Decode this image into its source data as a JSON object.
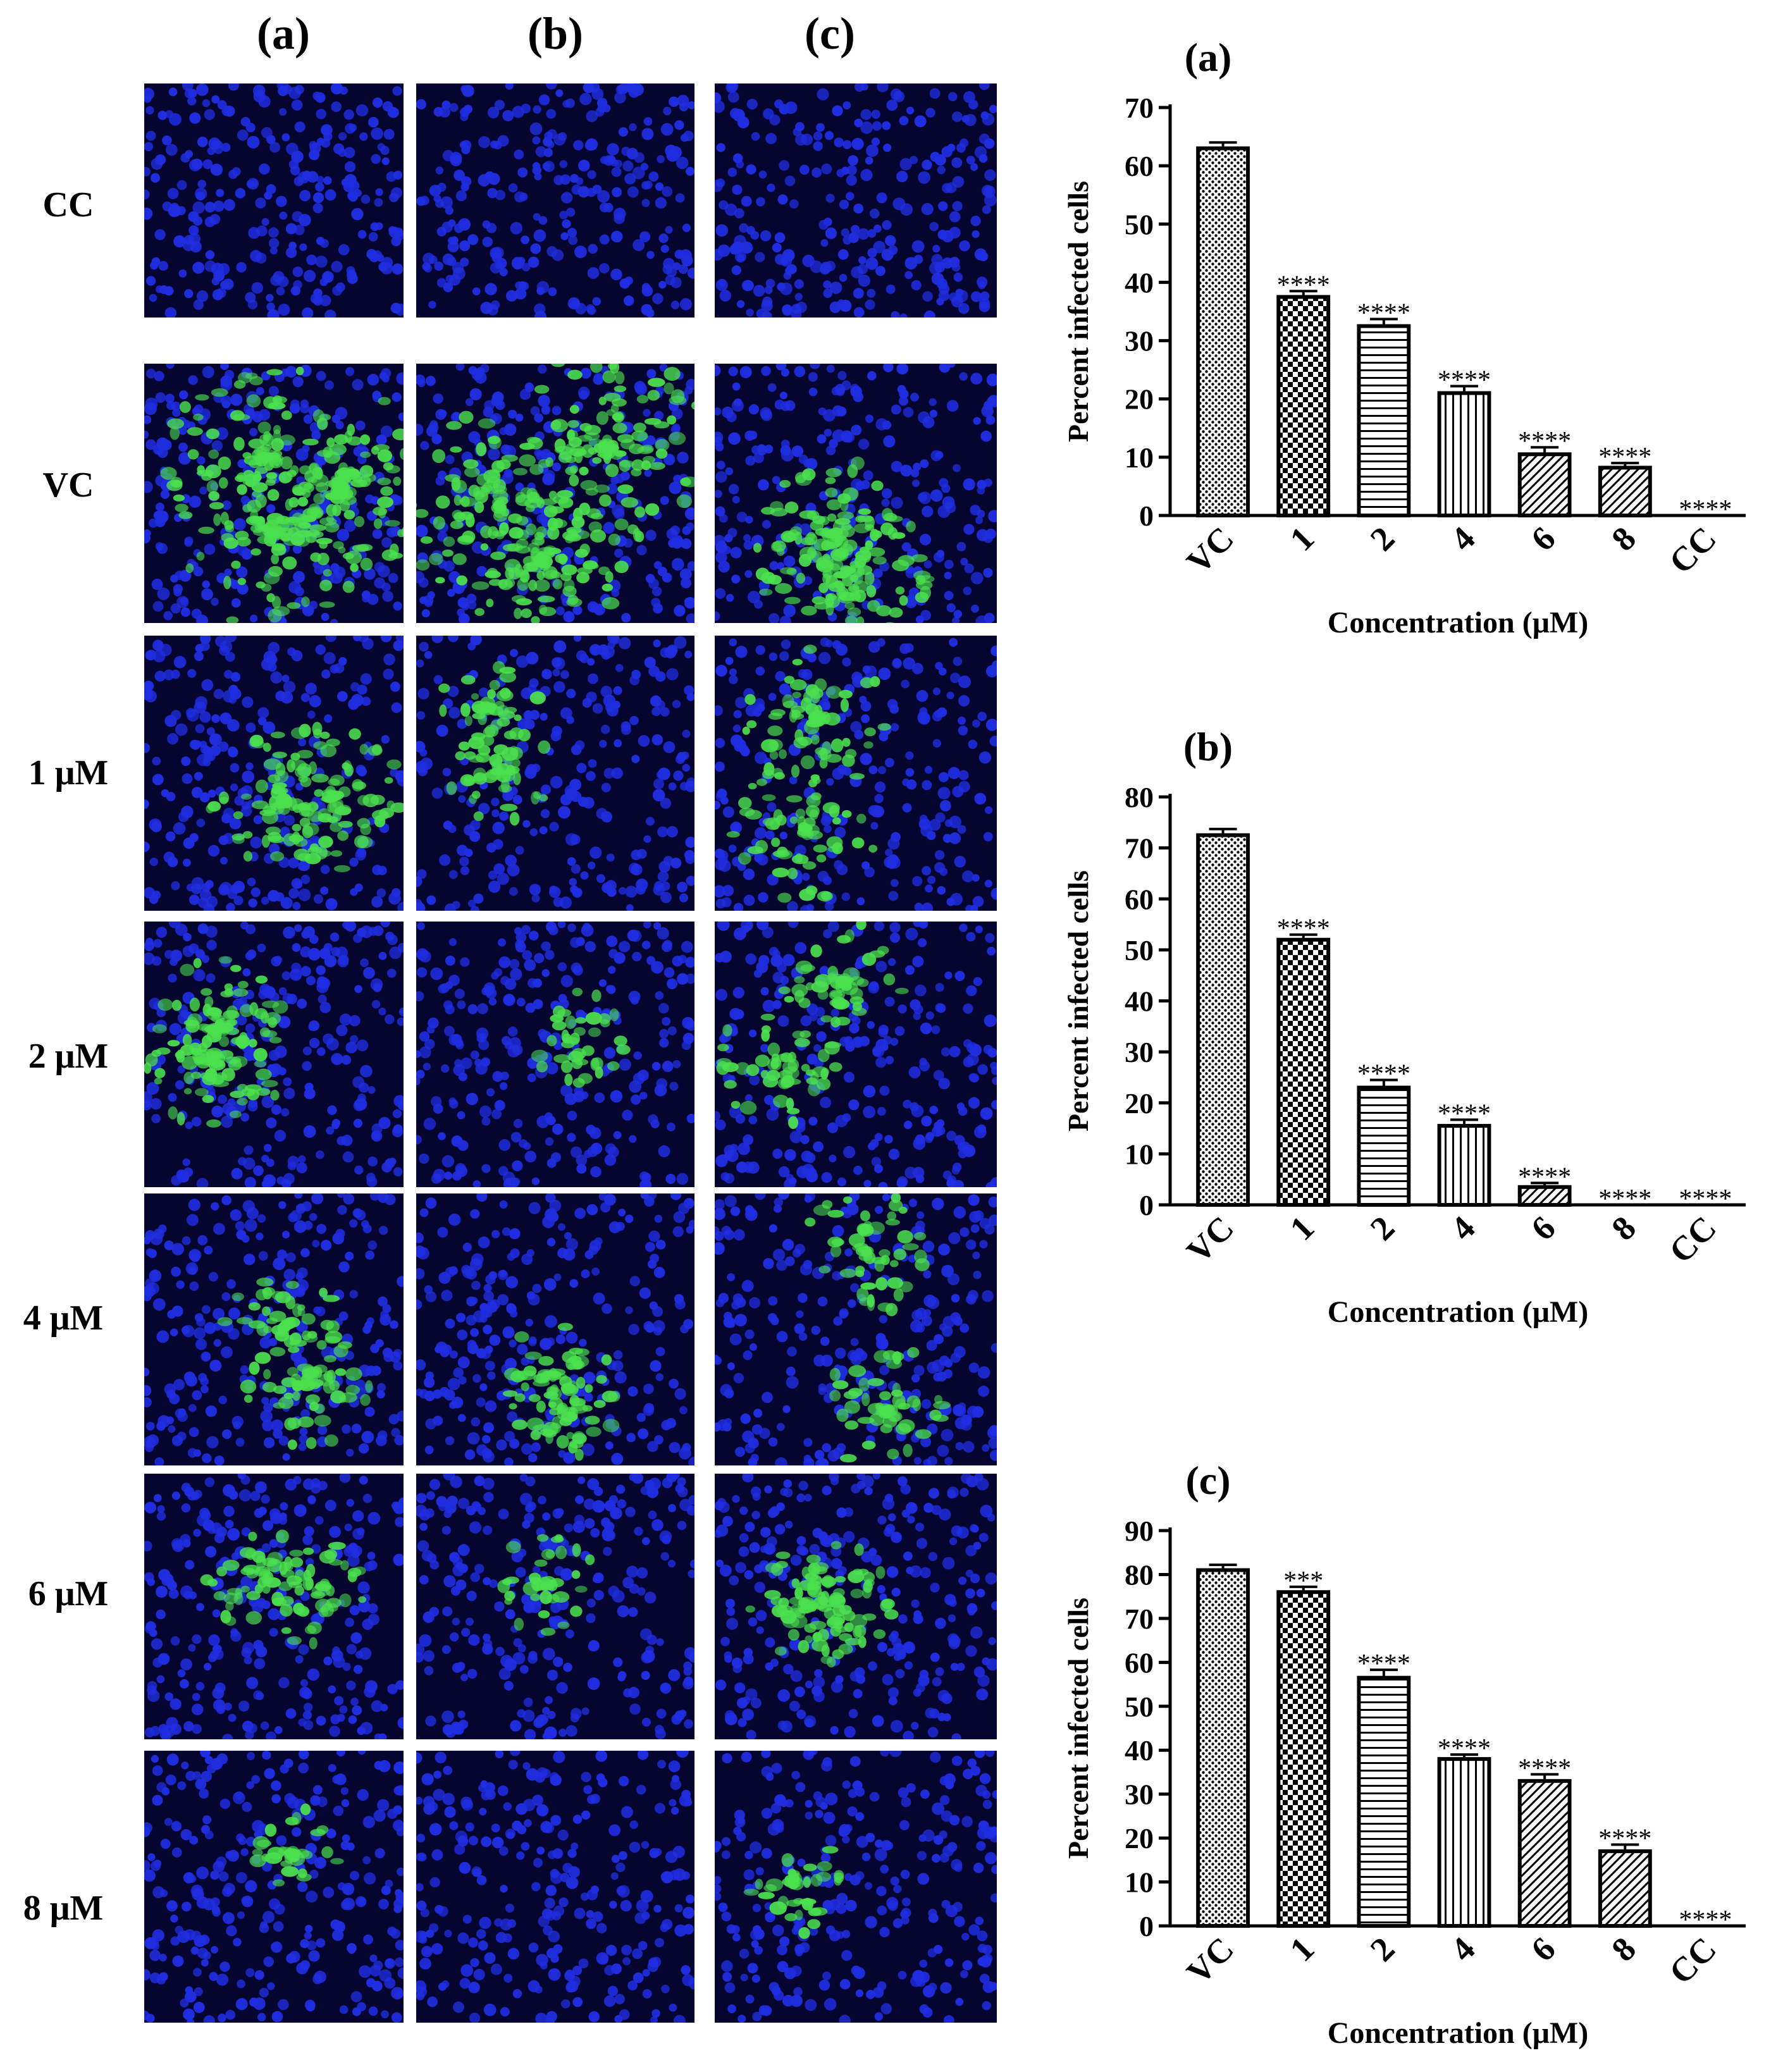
{
  "figure": {
    "column_labels": [
      "(a)",
      "(b)",
      "(c)"
    ],
    "row_labels": [
      "CC",
      "VC",
      "1 μM",
      "2 μM",
      "4 μM",
      "6 μM",
      "8 μM"
    ],
    "colors": {
      "nucleus": "#1f2de0",
      "infection": "#4be04e",
      "background": "#05052f"
    },
    "infection_level": [
      [
        0.0,
        0.0,
        0.0
      ],
      [
        0.85,
        0.9,
        0.7
      ],
      [
        0.55,
        0.25,
        0.5
      ],
      [
        0.5,
        0.2,
        0.35
      ],
      [
        0.35,
        0.25,
        0.4
      ],
      [
        0.25,
        0.2,
        0.35
      ],
      [
        0.15,
        0.0,
        0.2
      ]
    ]
  },
  "chart_data": [
    {
      "type": "bar",
      "panel_label": "(a)",
      "categories": [
        "VC",
        "1",
        "2",
        "4",
        "6",
        "8",
        "CC"
      ],
      "values": [
        63,
        37.5,
        32.5,
        21,
        10.5,
        8.2,
        0
      ],
      "errors": [
        1,
        1,
        1.2,
        1.2,
        1.2,
        0.8,
        0
      ],
      "annotations": [
        "",
        "****",
        "****",
        "****",
        "****",
        "****",
        "****"
      ],
      "patterns": [
        "dots",
        "checker",
        "hlines",
        "vlines",
        "diag",
        "diag",
        "none"
      ],
      "xlabel": "Concentration (μM)",
      "ylabel": "Percent infected cells",
      "ylim": [
        0,
        70
      ],
      "yticks": [
        0,
        10,
        20,
        30,
        40,
        50,
        60,
        70
      ]
    },
    {
      "type": "bar",
      "panel_label": "(b)",
      "categories": [
        "VC",
        "1",
        "2",
        "4",
        "6",
        "8",
        "CC"
      ],
      "values": [
        72.5,
        52,
        23,
        15.5,
        3.5,
        0,
        0
      ],
      "errors": [
        1.2,
        1,
        1.5,
        1.2,
        0.8,
        0,
        0
      ],
      "annotations": [
        "",
        "****",
        "****",
        "****",
        "****",
        "****",
        "****"
      ],
      "patterns": [
        "dots",
        "checker",
        "hlines",
        "vlines",
        "diag",
        "diag",
        "none"
      ],
      "xlabel": "Concentration (μM)",
      "ylabel": "Percent infected cells",
      "ylim": [
        0,
        80
      ],
      "yticks": [
        0,
        10,
        20,
        30,
        40,
        50,
        60,
        70,
        80
      ]
    },
    {
      "type": "bar",
      "panel_label": "(c)",
      "categories": [
        "VC",
        "1",
        "2",
        "4",
        "6",
        "8",
        "CC"
      ],
      "values": [
        81,
        76,
        56.5,
        38,
        33,
        17,
        0
      ],
      "errors": [
        1.2,
        1.2,
        1.8,
        1,
        1.5,
        1.5,
        0
      ],
      "annotations": [
        "",
        "***",
        "****",
        "****",
        "****",
        "****",
        "****"
      ],
      "patterns": [
        "dots",
        "checker",
        "hlines",
        "vlines",
        "diag",
        "diag",
        "none"
      ],
      "xlabel": "Concentration (μM)",
      "ylabel": "Percent infected cells",
      "ylim": [
        0,
        90
      ],
      "yticks": [
        0,
        10,
        20,
        30,
        40,
        50,
        60,
        70,
        80,
        90
      ]
    }
  ]
}
